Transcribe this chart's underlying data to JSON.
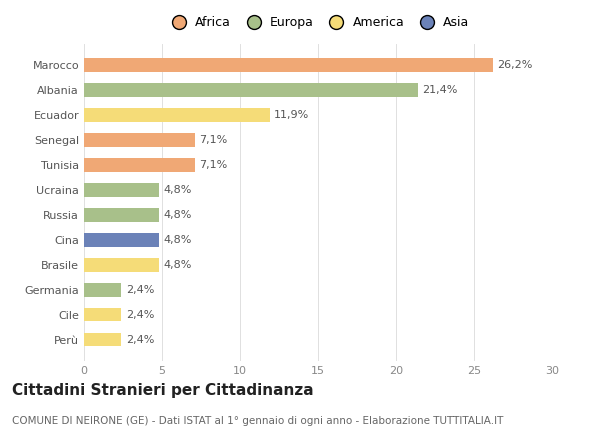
{
  "countries": [
    "Marocco",
    "Albania",
    "Ecuador",
    "Senegal",
    "Tunisia",
    "Ucraina",
    "Russia",
    "Cina",
    "Brasile",
    "Germania",
    "Cile",
    "Perù"
  ],
  "values": [
    26.2,
    21.4,
    11.9,
    7.1,
    7.1,
    4.8,
    4.8,
    4.8,
    4.8,
    2.4,
    2.4,
    2.4
  ],
  "labels": [
    "26,2%",
    "21,4%",
    "11,9%",
    "7,1%",
    "7,1%",
    "4,8%",
    "4,8%",
    "4,8%",
    "4,8%",
    "2,4%",
    "2,4%",
    "2,4%"
  ],
  "colors": [
    "#F0A875",
    "#A8C08A",
    "#F5DC78",
    "#F0A875",
    "#F0A875",
    "#A8C08A",
    "#A8C08A",
    "#6B82B8",
    "#F5DC78",
    "#A8C08A",
    "#F5DC78",
    "#F5DC78"
  ],
  "legend_labels": [
    "Africa",
    "Europa",
    "America",
    "Asia"
  ],
  "legend_colors": [
    "#F0A875",
    "#A8C08A",
    "#F5DC78",
    "#6B82B8"
  ],
  "xlim": [
    0,
    30
  ],
  "xticks": [
    0,
    5,
    10,
    15,
    20,
    25,
    30
  ],
  "title": "Cittadini Stranieri per Cittadinanza",
  "subtitle": "COMUNE DI NEIRONE (GE) - Dati ISTAT al 1° gennaio di ogni anno - Elaborazione TUTTITALIA.IT",
  "bg_color": "#ffffff",
  "bar_height": 0.55,
  "title_fontsize": 11,
  "subtitle_fontsize": 7.5,
  "label_fontsize": 8,
  "tick_fontsize": 8,
  "legend_fontsize": 9
}
